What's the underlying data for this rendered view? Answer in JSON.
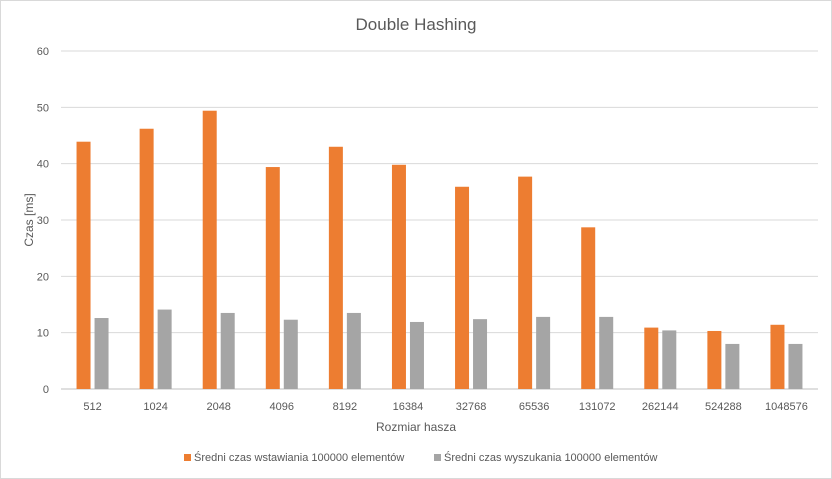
{
  "chart_data": {
    "type": "bar",
    "title": "Double Hashing",
    "xlabel": "Rozmiar hasza",
    "ylabel": "Czas [ms]",
    "ylim": [
      0,
      60
    ],
    "yticks": [
      0,
      10,
      20,
      30,
      40,
      50,
      60
    ],
    "grid": true,
    "legend_position": "bottom",
    "categories": [
      "512",
      "1024",
      "2048",
      "4096",
      "8192",
      "16384",
      "32768",
      "65536",
      "131072",
      "262144",
      "524288",
      "1048576"
    ],
    "series": [
      {
        "name": "Średni czas wstawiania 100000 elementów",
        "color": "#ed7d31",
        "values": [
          43.9,
          46.2,
          49.4,
          39.4,
          43.0,
          39.8,
          35.9,
          37.7,
          28.7,
          10.9,
          10.3,
          11.4
        ]
      },
      {
        "name": "Średni czas wyszukania 100000 elementów",
        "color": "#a5a5a5",
        "values": [
          12.6,
          14.1,
          13.5,
          12.3,
          13.5,
          11.9,
          12.4,
          12.8,
          12.8,
          10.4,
          8.0,
          8.0
        ]
      }
    ]
  }
}
